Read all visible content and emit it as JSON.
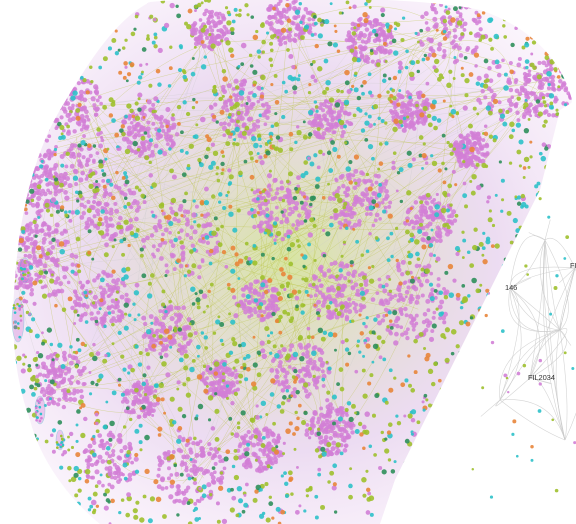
{
  "labels": {
    "fil_top": "FI",
    "fil_146": "146",
    "fil_2034": "FIL2034"
  },
  "colors": {
    "background": "#ffffff",
    "node_pink": "#d27fd6",
    "node_green": "#9ec02e",
    "node_teal": "#2ec1c9",
    "node_darkgreen": "#2f8f5b",
    "node_orange": "#e8853a",
    "edge_olive": "#b6c23a",
    "edge_grey": "#c9c9c9"
  },
  "views": [
    {
      "name": "full-network-view",
      "description_color_mix": [
        "pink",
        "green",
        "teal",
        "darkgreen",
        "orange"
      ]
    },
    {
      "name": "zoomed-detail-view"
    }
  ]
}
